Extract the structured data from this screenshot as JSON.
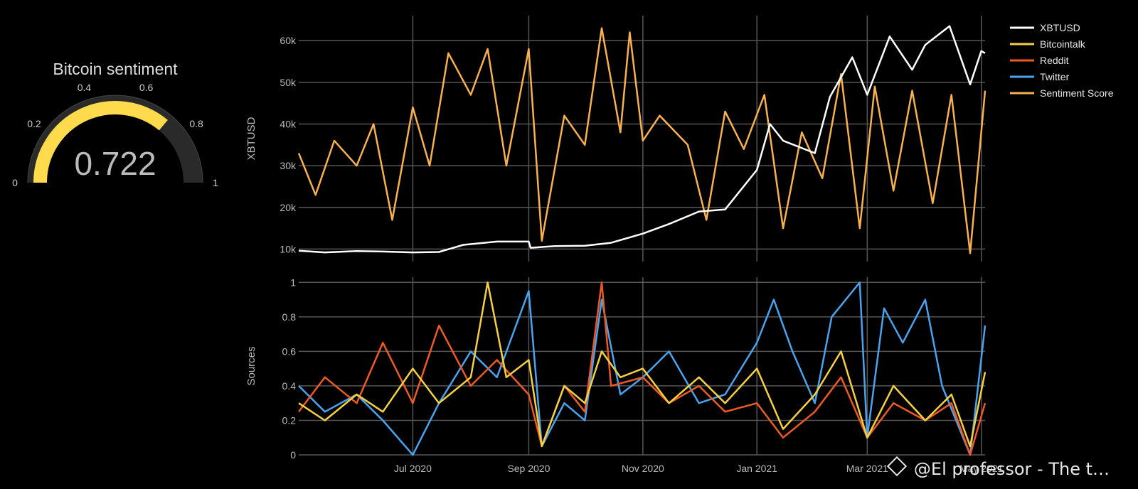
{
  "gauge": {
    "title": "Bitcoin sentiment",
    "value": 0.722,
    "value_label": "0.722",
    "range": [
      0,
      1
    ],
    "ticks": [
      "0",
      "0.2",
      "0.4",
      "0.6",
      "0.8",
      "1"
    ],
    "bar_color": "#fddb4c",
    "track_color": "#2a2a2a"
  },
  "watermark": {
    "text": "@El professor - The t…"
  },
  "colors": {
    "XBTUSD": "#ffffff",
    "Bitcointalk": "#f5d142",
    "Reddit": "#ee5a24",
    "Twitter": "#4aa3ee",
    "Sentiment Score": "#f7b151",
    "grid": "#555555",
    "tick_text": "#bbbbbb"
  },
  "chart_data": [
    {
      "type": "line",
      "ylabel": "XBTUSD",
      "x_ticks": [
        "Jul 2020",
        "Sep 2020",
        "Nov 2020",
        "Jan 2021",
        "Mar 2021",
        "May 2021"
      ],
      "x_range": [
        "2020-05-01",
        "2021-05-03"
      ],
      "y_ticks": [
        "10k",
        "20k",
        "30k",
        "40k",
        "50k",
        "60k"
      ],
      "y_range": [
        7000,
        66000
      ],
      "legend": [
        "XBTUSD",
        "Bitcointalk",
        "Reddit",
        "Twitter",
        "Sentiment Score"
      ],
      "legend_position": "top-right",
      "grid": true,
      "series": [
        {
          "name": "XBTUSD",
          "x": [
            "2020-05-01",
            "2020-05-15",
            "2020-06-01",
            "2020-06-15",
            "2020-07-01",
            "2020-07-15",
            "2020-07-28",
            "2020-08-15",
            "2020-09-01",
            "2020-09-02",
            "2020-09-15",
            "2020-10-01",
            "2020-10-15",
            "2020-11-01",
            "2020-11-15",
            "2020-12-01",
            "2020-12-15",
            "2021-01-01",
            "2021-01-08",
            "2021-01-15",
            "2021-02-01",
            "2021-02-09",
            "2021-02-21",
            "2021-03-01",
            "2021-03-13",
            "2021-03-25",
            "2021-04-01",
            "2021-04-14",
            "2021-04-25",
            "2021-05-01",
            "2021-05-03"
          ],
          "y": [
            9600,
            9200,
            9500,
            9400,
            9200,
            9300,
            11000,
            11800,
            11800,
            10300,
            10700,
            10800,
            11500,
            13700,
            16000,
            19000,
            19500,
            29000,
            40000,
            36000,
            33000,
            46500,
            56000,
            47000,
            61000,
            53000,
            59000,
            63500,
            49500,
            57500,
            57000
          ]
        },
        {
          "name": "Sentiment Score",
          "x": [
            "2020-05-01",
            "2020-05-10",
            "2020-05-20",
            "2020-06-01",
            "2020-06-10",
            "2020-06-20",
            "2020-07-01",
            "2020-07-10",
            "2020-07-20",
            "2020-08-01",
            "2020-08-10",
            "2020-08-20",
            "2020-09-01",
            "2020-09-08",
            "2020-09-20",
            "2020-10-01",
            "2020-10-10",
            "2020-10-20",
            "2020-10-25",
            "2020-11-01",
            "2020-11-10",
            "2020-11-25",
            "2020-12-05",
            "2020-12-15",
            "2020-12-25",
            "2021-01-05",
            "2021-01-15",
            "2021-01-25",
            "2021-02-05",
            "2021-02-15",
            "2021-02-25",
            "2021-03-05",
            "2021-03-15",
            "2021-03-25",
            "2021-04-05",
            "2021-04-15",
            "2021-04-25",
            "2021-05-03"
          ],
          "y": [
            33000,
            23000,
            36000,
            30000,
            40000,
            17000,
            44000,
            30000,
            57000,
            47000,
            58000,
            30000,
            58000,
            12000,
            42000,
            35000,
            63000,
            38000,
            62000,
            36000,
            42000,
            35000,
            17000,
            43000,
            34000,
            47000,
            15000,
            38000,
            27000,
            52000,
            15000,
            49000,
            24000,
            48000,
            21000,
            47000,
            9000,
            48000
          ]
        }
      ]
    },
    {
      "type": "line",
      "ylabel": "Sources",
      "x_ticks": [
        "Jul 2020",
        "Sep 2020",
        "Nov 2020",
        "Jan 2021",
        "Mar 2021",
        "May 2021"
      ],
      "x_range": [
        "2020-05-01",
        "2021-05-03"
      ],
      "y_ticks": [
        "0",
        "0.2",
        "0.4",
        "0.6",
        "0.8",
        "1"
      ],
      "y_range": [
        0,
        1.03
      ],
      "grid": true,
      "series": [
        {
          "name": "Bitcointalk",
          "x": [
            "2020-05-01",
            "2020-05-15",
            "2020-06-01",
            "2020-06-15",
            "2020-07-01",
            "2020-07-15",
            "2020-08-01",
            "2020-08-10",
            "2020-08-20",
            "2020-09-01",
            "2020-09-08",
            "2020-09-20",
            "2020-10-01",
            "2020-10-10",
            "2020-10-20",
            "2020-11-01",
            "2020-11-15",
            "2020-12-01",
            "2020-12-15",
            "2021-01-01",
            "2021-01-15",
            "2021-02-01",
            "2021-02-15",
            "2021-03-01",
            "2021-03-15",
            "2021-04-01",
            "2021-04-15",
            "2021-04-25",
            "2021-05-03"
          ],
          "y": [
            0.3,
            0.2,
            0.35,
            0.25,
            0.5,
            0.3,
            0.45,
            1.0,
            0.45,
            0.55,
            0.05,
            0.4,
            0.3,
            0.6,
            0.45,
            0.5,
            0.3,
            0.45,
            0.3,
            0.5,
            0.15,
            0.35,
            0.6,
            0.1,
            0.4,
            0.2,
            0.35,
            0.05,
            0.48
          ]
        },
        {
          "name": "Reddit",
          "x": [
            "2020-05-01",
            "2020-05-15",
            "2020-06-01",
            "2020-06-15",
            "2020-07-01",
            "2020-07-15",
            "2020-08-01",
            "2020-08-15",
            "2020-09-01",
            "2020-09-08",
            "2020-09-20",
            "2020-10-01",
            "2020-10-10",
            "2020-10-15",
            "2020-11-01",
            "2020-11-15",
            "2020-12-01",
            "2020-12-15",
            "2021-01-01",
            "2021-01-15",
            "2021-02-01",
            "2021-02-15",
            "2021-03-01",
            "2021-03-15",
            "2021-04-01",
            "2021-04-15",
            "2021-04-25",
            "2021-05-03"
          ],
          "y": [
            0.25,
            0.45,
            0.3,
            0.65,
            0.3,
            0.75,
            0.4,
            0.55,
            0.35,
            0.05,
            0.4,
            0.25,
            1.0,
            0.4,
            0.45,
            0.3,
            0.4,
            0.25,
            0.3,
            0.1,
            0.25,
            0.45,
            0.1,
            0.3,
            0.2,
            0.3,
            0.0,
            0.3
          ]
        },
        {
          "name": "Twitter",
          "x": [
            "2020-05-01",
            "2020-05-15",
            "2020-06-01",
            "2020-06-15",
            "2020-07-01",
            "2020-07-15",
            "2020-08-01",
            "2020-08-15",
            "2020-09-01",
            "2020-09-08",
            "2020-09-20",
            "2020-10-01",
            "2020-10-10",
            "2020-10-20",
            "2020-11-01",
            "2020-11-15",
            "2020-12-01",
            "2020-12-15",
            "2021-01-01",
            "2021-01-10",
            "2021-01-20",
            "2021-02-01",
            "2021-02-10",
            "2021-02-25",
            "2021-03-01",
            "2021-03-10",
            "2021-03-20",
            "2021-04-01",
            "2021-04-10",
            "2021-04-25",
            "2021-05-03"
          ],
          "y": [
            0.4,
            0.25,
            0.35,
            0.2,
            0.0,
            0.3,
            0.6,
            0.45,
            0.95,
            0.05,
            0.3,
            0.2,
            0.9,
            0.35,
            0.45,
            0.6,
            0.3,
            0.35,
            0.65,
            0.9,
            0.6,
            0.3,
            0.8,
            1.0,
            0.1,
            0.85,
            0.65,
            0.9,
            0.4,
            0.0,
            0.75
          ]
        }
      ]
    }
  ]
}
